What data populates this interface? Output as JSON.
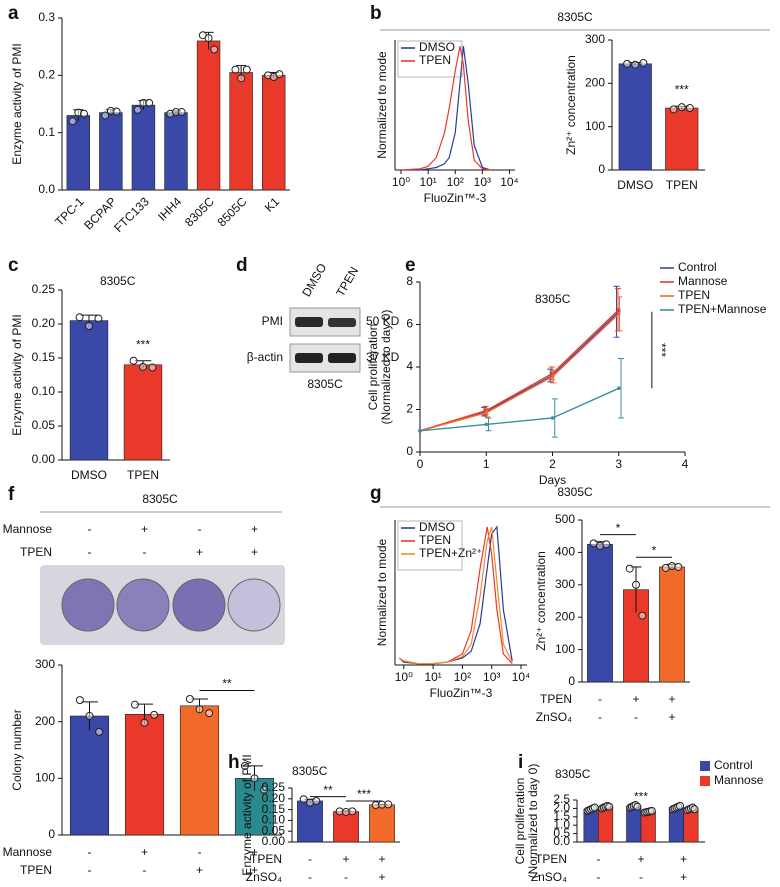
{
  "chart_data": [
    {
      "panel": "a",
      "type": "bar",
      "ylabel": "Enzyme activity of PMI",
      "categories": [
        "TPC-1",
        "BCPAP",
        "FTC133",
        "IHH4",
        "8305C",
        "8505C",
        "K1"
      ],
      "values": [
        0.13,
        0.135,
        0.148,
        0.135,
        0.26,
        0.205,
        0.2
      ],
      "errors": [
        0.01,
        0.005,
        0.008,
        0.003,
        0.015,
        0.012,
        0.005
      ],
      "points": [
        [
          0.12,
          0.135,
          0.133
        ],
        [
          0.13,
          0.138,
          0.137
        ],
        [
          0.14,
          0.152,
          0.152
        ],
        [
          0.133,
          0.136,
          0.136
        ],
        [
          0.27,
          0.265,
          0.245
        ],
        [
          0.21,
          0.195,
          0.21
        ],
        [
          0.2,
          0.197,
          0.202
        ]
      ],
      "colors": [
        "#3a48a8",
        "#3a48a8",
        "#3a48a8",
        "#3a48a8",
        "#e8392a",
        "#e8392a",
        "#e8392a"
      ],
      "ylim": [
        0,
        0.3
      ],
      "yticks": [
        {
          "value": 0,
          "label": "0.0"
        },
        0.1,
        0.2,
        0.3
      ]
    },
    {
      "panel": "b",
      "type": "line",
      "header": "8305C",
      "xscale": "log",
      "xlabel": "FluoZin™-3",
      "ylabel": "Normalized to mode",
      "x": [
        1,
        5,
        10,
        20,
        40,
        60,
        100,
        150,
        200,
        300,
        500,
        1000,
        2000
      ],
      "series": [
        {
          "name": "DMSO",
          "color": "#2b3a9a",
          "values": [
            0,
            0,
            1,
            2,
            5,
            10,
            30,
            70,
            100,
            70,
            20,
            2,
            0
          ]
        },
        {
          "name": "TPEN",
          "color": "#e8392a",
          "values": [
            0,
            1,
            3,
            10,
            30,
            50,
            80,
            100,
            85,
            40,
            8,
            1,
            0
          ]
        }
      ],
      "xlim": [
        0.6,
        16000
      ],
      "xticks": [
        {
          "value": 1,
          "label": "10⁰"
        },
        {
          "value": 10,
          "label": "10¹"
        },
        {
          "value": 100,
          "label": "10²"
        },
        {
          "value": 1000,
          "label": "10³"
        },
        {
          "value": 10000,
          "label": "10⁴"
        }
      ],
      "ylim": [
        0,
        105
      ],
      "legend": "upper left"
    },
    {
      "type": "bar",
      "ylabel": "Zn²⁺ concentration",
      "categories": [
        "DMSO",
        "TPEN"
      ],
      "values": [
        245,
        143
      ],
      "errors": [
        3,
        4
      ],
      "points": [
        [
          245,
          243,
          247
        ],
        [
          140,
          145,
          143
        ]
      ],
      "colors": [
        "#3a48a8",
        "#e8392a"
      ],
      "ylim": [
        0,
        300
      ],
      "yticks": [
        0,
        100,
        200,
        300
      ],
      "annotations": [
        {
          "text": "***"
        }
      ]
    },
    {
      "panel": "c",
      "type": "bar",
      "title": "8305C",
      "ylabel": "Enzyme activity of PMI",
      "categories": [
        "DMSO",
        "TPEN"
      ],
      "values": [
        0.205,
        0.14
      ],
      "errors": [
        0.008,
        0.006
      ],
      "points": [
        [
          0.21,
          0.197,
          0.208
        ],
        [
          0.146,
          0.137,
          0.136
        ]
      ],
      "colors": [
        "#3a48a8",
        "#e8392a"
      ],
      "ylim": [
        0,
        0.25
      ],
      "yticks": [
        {
          "value": 0,
          "label": "0.00"
        },
        0.05,
        {
          "value": 0.1,
          "label": "0.10"
        },
        0.15,
        {
          "value": 0.2,
          "label": "0.20"
        },
        0.25
      ],
      "annotations": [
        {
          "text": "***"
        }
      ]
    },
    {
      "panel": "e",
      "type": "line",
      "title": "8305C",
      "xlabel": "Days",
      "ylabel": [
        "Cell proliferation",
        "(Normalized to day 0)"
      ],
      "x": [
        0,
        1,
        2,
        3
      ],
      "series": [
        {
          "name": "Control",
          "color": "#3a48a8",
          "values": [
            1,
            1.9,
            3.6,
            6.6
          ],
          "errors": [
            0,
            0.2,
            0.3,
            1.2
          ]
        },
        {
          "name": "Mannose",
          "color": "#e8392a",
          "values": [
            1,
            1.95,
            3.7,
            6.7
          ],
          "errors": [
            0,
            0.2,
            0.3,
            1.0
          ]
        },
        {
          "name": "TPEN",
          "color": "#f26a2a",
          "values": [
            1,
            1.85,
            3.55,
            6.5
          ],
          "errors": [
            0,
            0.2,
            0.3,
            0.8
          ]
        },
        {
          "name": "TPEN+Mannose",
          "color": "#3a8fa0",
          "values": [
            1,
            1.3,
            1.6,
            3.0
          ],
          "errors": [
            0,
            0.3,
            0.9,
            1.4
          ]
        }
      ],
      "xlim": [
        0,
        4
      ],
      "xticks": [
        0,
        1,
        2,
        3,
        4
      ],
      "ylim": [
        0,
        8
      ],
      "yticks": [
        0,
        2,
        4,
        6,
        8
      ],
      "legend": "right",
      "annotations": [
        {
          "text": "***"
        }
      ]
    },
    {
      "panel": "f",
      "type": "bar",
      "title": "8305C",
      "ylabel": "Colony number",
      "factors": [
        {
          "name": "Mannose",
          "levels": [
            "-",
            "+",
            "-",
            "+"
          ]
        },
        {
          "name": "TPEN",
          "levels": [
            "-",
            "-",
            "+",
            "+"
          ]
        }
      ],
      "values": [
        210,
        213,
        228,
        100
      ],
      "errors": [
        25,
        18,
        12,
        22
      ],
      "points": [
        [
          238,
          210,
          182
        ],
        [
          230,
          198,
          212
        ],
        [
          240,
          222,
          215
        ],
        [
          122,
          100,
          80
        ]
      ],
      "colors": [
        "#3a48a8",
        "#e8392a",
        "#f26a2a",
        "#2b8a8f"
      ],
      "ylim": [
        0,
        300
      ],
      "yticks": [
        0,
        100,
        200,
        300
      ],
      "annotations": [
        {
          "text": "**"
        }
      ]
    },
    {
      "panel": "g",
      "type": "line",
      "header": "8305C",
      "xscale": "log",
      "xlabel": "FluoZin™-3",
      "ylabel": "Normalized to mode",
      "x": [
        0.7,
        1,
        3,
        10,
        30,
        100,
        200,
        400,
        700,
        1000,
        1500,
        2500,
        5000
      ],
      "series": [
        {
          "name": "DMSO",
          "color": "#2b3a9a",
          "values": [
            5,
            2,
            1,
            1,
            2,
            5,
            10,
            30,
            70,
            95,
            100,
            40,
            3
          ]
        },
        {
          "name": "TPEN",
          "color": "#e8392a",
          "values": [
            5,
            3,
            1,
            1,
            2,
            8,
            25,
            70,
            100,
            80,
            40,
            8,
            1
          ]
        },
        {
          "name": "TPEN+Zn²⁺",
          "color": "#f28a2a",
          "values": [
            5,
            3,
            1,
            1,
            2,
            6,
            15,
            50,
            90,
            100,
            60,
            15,
            2
          ]
        }
      ],
      "xlim": [
        0.5,
        16000
      ],
      "xticks": [
        {
          "value": 1,
          "label": "10⁰"
        },
        {
          "value": 10,
          "label": "10¹"
        },
        {
          "value": 100,
          "label": "10²"
        },
        {
          "value": 1000,
          "label": "10³"
        },
        {
          "value": 10000,
          "label": "10⁴"
        }
      ],
      "ylim": [
        0,
        105
      ],
      "legend": "upper left"
    },
    {
      "type": "bar",
      "ylabel": "Zn²⁺ concentration",
      "factors": [
        {
          "name": "TPEN",
          "levels": [
            "-",
            "+",
            "+"
          ]
        },
        {
          "name": "ZnSO₄",
          "levels": [
            "-",
            "-",
            "+"
          ]
        }
      ],
      "values": [
        425,
        285,
        355
      ],
      "errors": [
        8,
        70,
        8
      ],
      "points": [
        [
          428,
          420,
          425
        ],
        [
          350,
          300,
          205
        ],
        [
          352,
          358,
          355
        ]
      ],
      "colors": [
        "#3a48a8",
        "#e8392a",
        "#f26a2a"
      ],
      "ylim": [
        0,
        500
      ],
      "yticks": [
        0,
        100,
        200,
        300,
        400,
        500
      ],
      "annotations": [
        {
          "text": "*"
        },
        {
          "text": "*"
        }
      ]
    },
    {
      "panel": "h",
      "type": "bar",
      "title": "8305C",
      "ylabel": "Enzyme activity of PMI",
      "factors": [
        {
          "name": "TPEN",
          "levels": [
            "-",
            "+",
            "+"
          ]
        },
        {
          "name": "ZnSO₄",
          "levels": [
            "-",
            "-",
            "+"
          ]
        }
      ],
      "values": [
        0.19,
        0.141,
        0.172
      ],
      "errors": [
        0.008,
        0.003,
        0.002
      ],
      "points": [
        [
          0.198,
          0.182,
          0.19
        ],
        [
          0.142,
          0.139,
          0.142
        ],
        [
          0.171,
          0.173,
          0.174
        ]
      ],
      "colors": [
        "#3a48a8",
        "#e8392a",
        "#f26a2a"
      ],
      "ylim": [
        0,
        0.25
      ],
      "yticks": [
        {
          "value": 0,
          "label": "0.00"
        },
        0.05,
        {
          "value": 0.1,
          "label": "0.10"
        },
        0.15,
        {
          "value": 0.2,
          "label": "0.20"
        },
        0.25
      ],
      "annotations": [
        {
          "text": "**"
        },
        {
          "text": "***"
        }
      ]
    },
    {
      "panel": "i",
      "type": "bar",
      "title": "8305C",
      "ylabel": [
        "Cell proliferation",
        "(Normalized to day 0)"
      ],
      "factors": [
        {
          "name": "TPEN",
          "levels": [
            "-",
            "+",
            "+"
          ]
        },
        {
          "name": "ZnSO₄",
          "levels": [
            "-",
            "-",
            "+"
          ]
        }
      ],
      "series": [
        {
          "name": "Control",
          "color": "#3a48a8",
          "values": [
            1.95,
            2.12,
            2.05
          ],
          "errors": [
            0.08,
            0.07,
            0.08
          ],
          "points": [
            [
              1.85,
              1.9,
              1.95,
              2.0,
              2.05
            ],
            [
              2.05,
              2.1,
              2.15,
              2.2,
              2.1
            ],
            [
              1.95,
              2.0,
              2.05,
              2.1,
              2.15
            ]
          ]
        },
        {
          "name": "Mannose",
          "color": "#e8392a",
          "values": [
            2.08,
            1.8,
            1.98
          ],
          "errors": [
            0.07,
            0.04,
            0.07
          ],
          "points": [
            [
              2.0,
              2.05,
              2.1,
              2.15,
              2.1
            ],
            [
              1.75,
              1.78,
              1.8,
              1.83,
              1.85
            ],
            [
              1.9,
              1.95,
              2.0,
              2.05,
              1.95
            ]
          ]
        }
      ],
      "ylim": [
        0,
        2.5
      ],
      "yticks": [
        {
          "value": 0,
          "label": "0.0"
        },
        0.5,
        {
          "value": 1,
          "label": "1.0"
        },
        1.5,
        {
          "value": 2,
          "label": "2.0"
        },
        2.5
      ],
      "legend": "upper right",
      "annotations": [
        {
          "text": "***"
        }
      ]
    }
  ],
  "blot": {
    "panel": "d",
    "lanes": [
      "DMSO",
      "TPEN"
    ],
    "rows": [
      {
        "name": "PMI",
        "size": "50 KD"
      },
      {
        "name": "β-actin",
        "size": "37 KD"
      }
    ],
    "cell_line": "8305C"
  }
}
